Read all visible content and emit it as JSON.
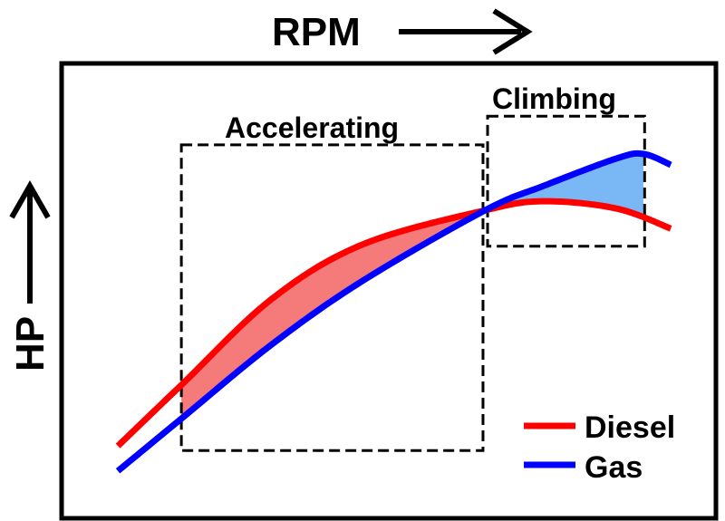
{
  "chart_data": {
    "type": "line",
    "title": "",
    "xlabel": "RPM",
    "ylabel": "HP",
    "xlim": [
      0,
      100
    ],
    "ylim": [
      0,
      100
    ],
    "grid": false,
    "legend_position": "bottom-right",
    "series": [
      {
        "name": "Diesel",
        "color": "#ff0000",
        "x": [
          8.6,
          18.3,
          32.1,
          46.0,
          64.7,
          73.7,
          84.8,
          93.1
        ],
        "y": [
          15.9,
          29.3,
          48.2,
          60.2,
          67.7,
          69.7,
          68.1,
          63.7
        ]
      },
      {
        "name": "Gas",
        "color": "#0000ff",
        "x": [
          8.6,
          18.3,
          32.1,
          46.0,
          64.7,
          73.7,
          84.8,
          88.9,
          93.1
        ],
        "y": [
          10.4,
          21.9,
          38.2,
          52.2,
          67.7,
          73.1,
          79.1,
          80.1,
          77.7
        ]
      }
    ],
    "regions": [
      {
        "label": "Accelerating",
        "x": [
          18.3,
          64.4
        ],
        "y": [
          14.9,
          82.1
        ],
        "fill_between": [
          18.3,
          64.7
        ],
        "fill_color": "#f57a7a"
      },
      {
        "label": "Climbing",
        "x": [
          65.1,
          89.1
        ],
        "y": [
          59.8,
          88.4
        ],
        "fill_between": [
          64.7,
          88.9
        ],
        "fill_color": "#7ab8f5"
      }
    ]
  }
}
